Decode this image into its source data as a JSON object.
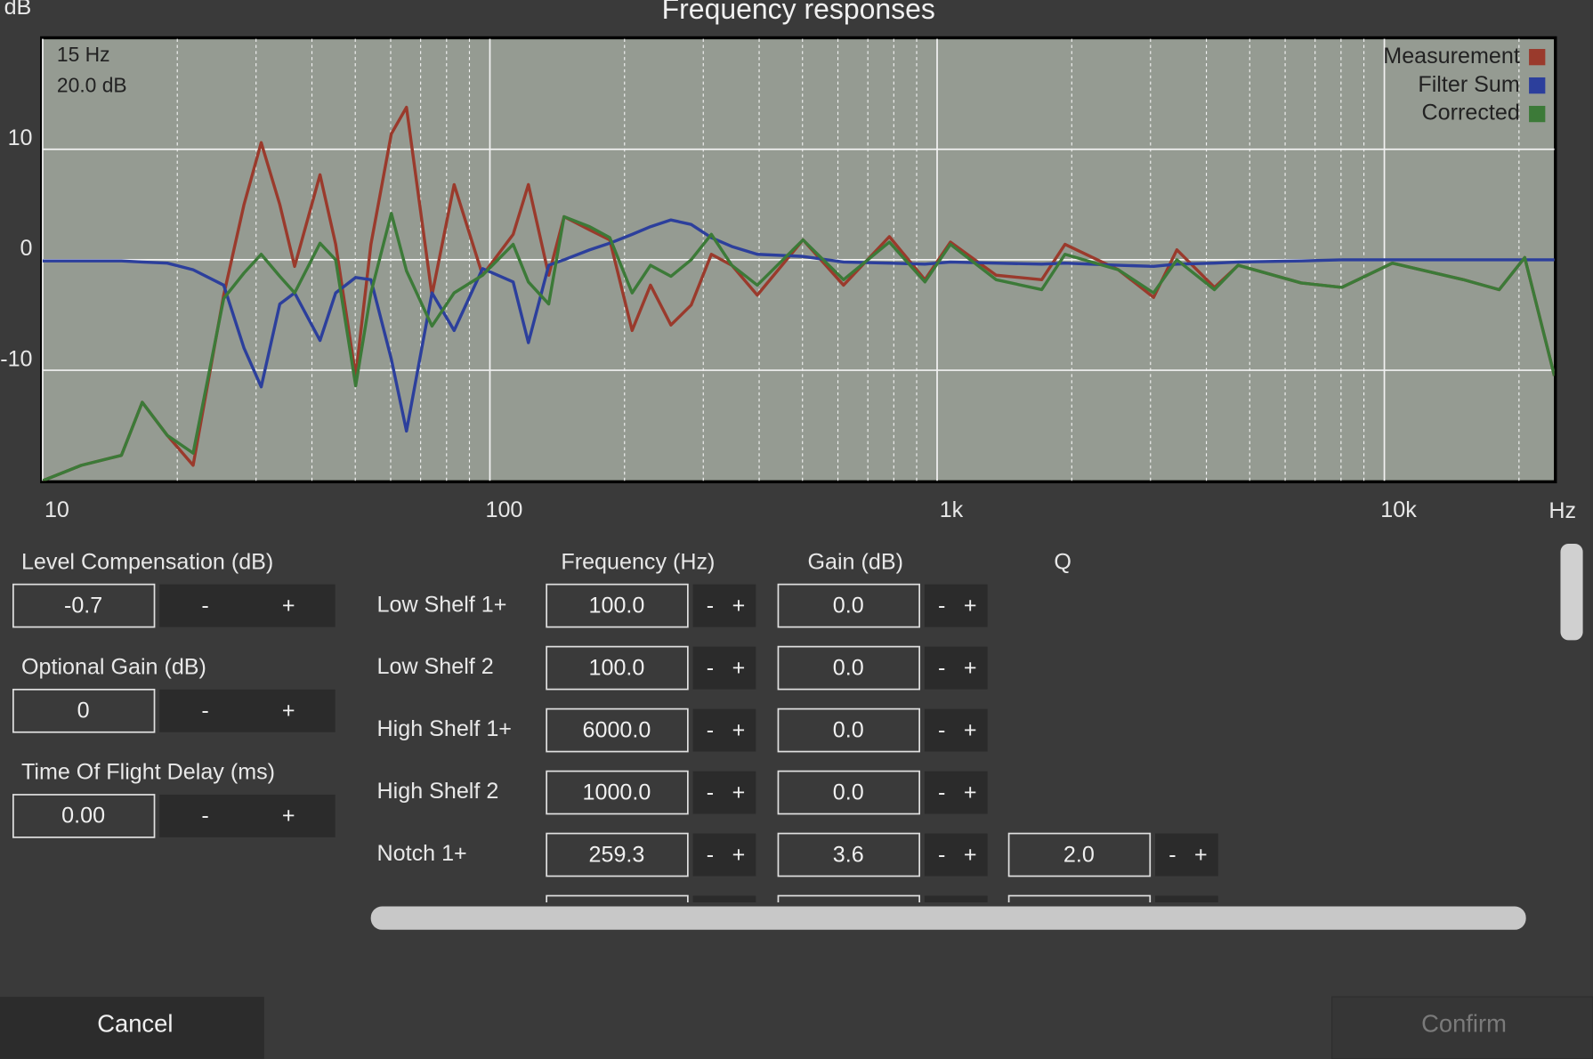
{
  "chart_data": {
    "type": "line",
    "title": "Frequency responses",
    "ylabel": "dB",
    "xlabel": "Hz",
    "annotations": [
      "15 Hz",
      "20.0 dB"
    ],
    "xscale": "log",
    "grid": true,
    "legend": "top-right",
    "xlim": [
      10,
      24000
    ],
    "ylim": [
      -20,
      20
    ],
    "xticks": [
      10,
      100,
      {
        "value": 1000,
        "label": "1k"
      },
      {
        "value": 10000,
        "label": "10k"
      }
    ],
    "minor_xticks": [
      20,
      30,
      40,
      50,
      60,
      70,
      80,
      90,
      200,
      300,
      400,
      500,
      600,
      700,
      800,
      900,
      2000,
      3000,
      4000,
      5000,
      6000,
      7000,
      8000,
      9000,
      20000
    ],
    "yticks": [
      10,
      0,
      -10
    ],
    "x": [
      10,
      12.2,
      15,
      16.7,
      19,
      21.7,
      25.4,
      28.2,
      30.8,
      33.9,
      36.6,
      41.7,
      45.2,
      50.1,
      54.2,
      60.2,
      65.1,
      74.2,
      83.2,
      96.3,
      112.7,
      121.9,
      135.4,
      146.5,
      167.1,
      185.4,
      208,
      228.6,
      254,
      281.8,
      312.7,
      347.4,
      396.1,
      501.2,
      617.6,
      782,
      939,
      1071,
      1355,
      1714,
      1932,
      2541,
      3048,
      3436,
      4169,
      4710,
      6516,
      8035,
      10420,
      15030,
      18070,
      20600,
      24000
    ],
    "series": [
      {
        "name": "Measurement",
        "color": "#9a3a2c",
        "values": [
          -20,
          -18.6,
          -17.7,
          -12.9,
          -15.9,
          -18.6,
          -3.2,
          5,
          10.6,
          5,
          -0.6,
          7.7,
          1.4,
          -10.5,
          1.4,
          11.4,
          13.8,
          -3.2,
          6.8,
          -1.4,
          2.3,
          6.8,
          -1.4,
          3.9,
          2.7,
          1.8,
          -6.4,
          -2.3,
          -5.9,
          -4.1,
          0.5,
          -0.5,
          -3.2,
          1.8,
          -2.3,
          2.1,
          -1.8,
          1.6,
          -1.4,
          -1.8,
          1.4,
          -0.9,
          -3.4,
          0.9,
          -2.5,
          -0.5,
          -2.1,
          -2.5,
          -0.3,
          -1.8,
          -2.7,
          0.2,
          -10.5
        ]
      },
      {
        "name": "Filter Sum",
        "color": "#2c3f9c",
        "values": [
          -0.1,
          -0.1,
          -0.1,
          -0.2,
          -0.3,
          -0.9,
          -2.3,
          -8,
          -11.5,
          -4,
          -3,
          -7.3,
          -3,
          -1.6,
          -1.8,
          -9,
          -15.5,
          -3,
          -6.4,
          -0.8,
          -2,
          -7.5,
          -0.5,
          0,
          0.9,
          1.5,
          2.3,
          3,
          3.6,
          3.2,
          2,
          1.2,
          0.5,
          0.3,
          -0.2,
          -0.3,
          -0.4,
          -0.2,
          -0.3,
          -0.4,
          -0.3,
          -0.5,
          -0.6,
          -0.4,
          -0.3,
          -0.2,
          -0.1,
          0,
          0,
          0,
          0,
          0,
          0
        ]
      },
      {
        "name": "Corrected",
        "color": "#3c7a38",
        "values": [
          -20,
          -18.6,
          -17.7,
          -12.9,
          -15.9,
          -17.5,
          -3.5,
          -1.2,
          0.5,
          -1.5,
          -3,
          1.5,
          0,
          -11.4,
          -3,
          4.2,
          -1,
          -6,
          -3,
          -1.4,
          1.4,
          -2,
          -4,
          3.9,
          3,
          2,
          -3,
          -0.5,
          -1.5,
          0,
          2.3,
          -0.5,
          -2.3,
          1.8,
          -1.8,
          1.6,
          -2,
          1.4,
          -1.8,
          -2.7,
          0.5,
          -0.9,
          -3,
          0,
          -2.7,
          -0.5,
          -2.1,
          -2.5,
          -0.3,
          -1.8,
          -2.7,
          0.2,
          -10.5
        ]
      }
    ]
  },
  "panel": {
    "left": [
      {
        "label": "Level Compensation (dB)",
        "value": "-0.7"
      },
      {
        "label": "Optional Gain (dB)",
        "value": "0"
      },
      {
        "label": "Time Of Flight Delay (ms)",
        "value": "0.00"
      }
    ],
    "columns": [
      "Frequency (Hz)",
      "Gain (dB)",
      "Q"
    ],
    "filters": [
      {
        "name": "Low Shelf 1+",
        "frequency": "100.0",
        "gain": "0.0"
      },
      {
        "name": "Low Shelf 2",
        "frequency": "100.0",
        "gain": "0.0"
      },
      {
        "name": "High Shelf 1+",
        "frequency": "6000.0",
        "gain": "0.0"
      },
      {
        "name": "High Shelf 2",
        "frequency": "1000.0",
        "gain": "0.0"
      },
      {
        "name": "Notch 1+",
        "frequency": "259.3",
        "gain": "3.6",
        "q": "2.0"
      }
    ],
    "minus": "-",
    "plus": "+"
  },
  "actions": {
    "cancel": "Cancel",
    "confirm": "Confirm"
  }
}
